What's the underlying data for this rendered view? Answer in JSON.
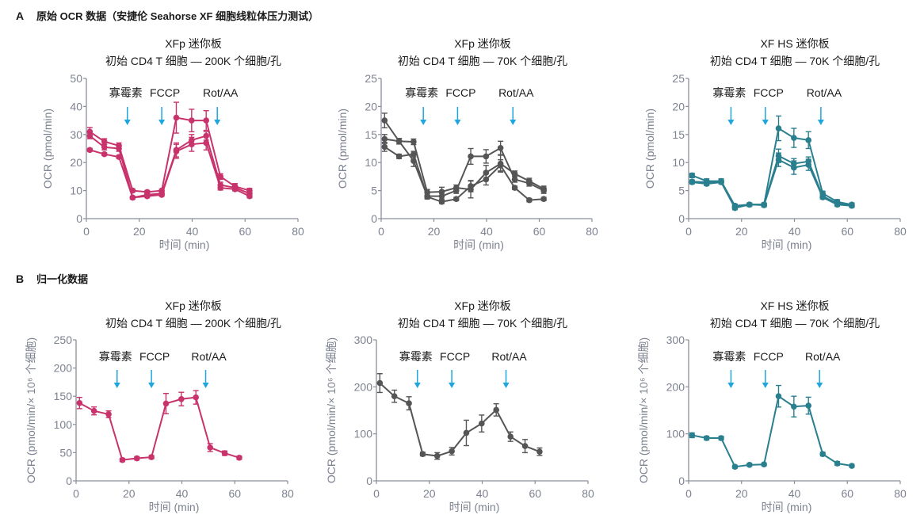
{
  "sections": [
    {
      "letter": "A",
      "title": "原始 OCR 数据（安捷伦 Seahorse XF 细胞线粒体压力测试）"
    },
    {
      "letter": "B",
      "title": "归一化数据"
    }
  ],
  "colors": {
    "pink": "#c8336c",
    "gray": "#555555",
    "teal": "#2a7f8f",
    "arrow": "#1ea6e0",
    "axis": "#8a8f99"
  },
  "chart_data": [
    {
      "type": "line",
      "section": "A",
      "title": [
        "XFp 迷你板",
        "初始 CD4 T 细胞 — 200K 个细胞/孔"
      ],
      "xlabel": "时间 (min)",
      "ylabel": "OCR (pmol/min)",
      "xlim": [
        0,
        80
      ],
      "xticks": [
        0,
        20,
        40,
        60,
        80
      ],
      "ylim": [
        0,
        50
      ],
      "yticks": [
        0,
        10,
        20,
        30,
        40,
        50
      ],
      "color": "#c8336c",
      "annotations": [
        {
          "label": "寡霉素",
          "x": 15.5
        },
        {
          "label": "FCCP",
          "x": 28.5
        },
        {
          "label": "Rot/AA",
          "x": 49.5
        }
      ],
      "x": [
        1.3,
        6.8,
        12.3,
        17.5,
        23,
        28.5,
        34,
        39.8,
        45.3,
        50.7,
        56.2,
        61.7
      ],
      "series": [
        {
          "values": [
            31,
            27.5,
            26,
            10,
            9.5,
            10,
            36,
            35,
            35,
            15,
            11.5,
            10
          ],
          "errors": [
            1.5,
            1,
            1,
            0.5,
            0.5,
            0.5,
            5.5,
            4,
            3.5,
            1,
            1,
            0.8
          ]
        },
        {
          "values": [
            29.5,
            25.5,
            25,
            7.5,
            8.5,
            9,
            24.5,
            28,
            29.5,
            12,
            11,
            9
          ],
          "errors": [
            1,
            1,
            1,
            0.5,
            0.5,
            0.5,
            2.5,
            2,
            1.5,
            1,
            0.8,
            0.8
          ]
        },
        {
          "values": [
            24.5,
            23,
            22,
            7.5,
            8,
            8.5,
            24,
            26.5,
            27,
            11,
            10.5,
            8
          ],
          "errors": [
            0.5,
            0.5,
            0.5,
            0.5,
            0.5,
            0.5,
            2.5,
            2.5,
            2.5,
            0.8,
            0.6,
            0.6
          ]
        }
      ]
    },
    {
      "type": "line",
      "section": "A",
      "title": [
        "XFp 迷你板",
        "初始 CD4 T 细胞 — 70K 个细胞/孔"
      ],
      "xlabel": "时间 (min)",
      "ylabel": "OCR (pmol/min)",
      "xlim": [
        0,
        80
      ],
      "xticks": [
        0,
        20,
        40,
        60,
        80
      ],
      "ylim": [
        0,
        25
      ],
      "yticks": [
        0,
        5,
        10,
        15,
        20,
        25
      ],
      "color": "#555555",
      "annotations": [
        {
          "label": "寡霉素",
          "x": 16
        },
        {
          "label": "FCCP",
          "x": 29
        },
        {
          "label": "Rot/AA",
          "x": 50
        }
      ],
      "x": [
        1.3,
        6.8,
        12.3,
        17.5,
        23,
        28.5,
        34,
        39.8,
        45.3,
        50.7,
        56.2,
        61.7
      ],
      "series": [
        {
          "values": [
            17.5,
            13.8,
            10.3,
            4,
            4,
            5,
            11.1,
            11.1,
            12.6,
            7,
            6.3,
            5
          ],
          "errors": [
            1.3,
            0.5,
            1,
            0.5,
            0.5,
            0.5,
            1.4,
            1.2,
            1.2,
            0.5,
            0.5,
            0.5
          ]
        },
        {
          "values": [
            14.2,
            13.8,
            13.7,
            4.7,
            4.8,
            5.5,
            5.2,
            8.2,
            9.8,
            8,
            6.7,
            5.3
          ],
          "errors": [
            0.8,
            0.5,
            0.5,
            0.5,
            0.8,
            0.5,
            1.5,
            1.3,
            1.5,
            0.5,
            0.5,
            0.5
          ]
        },
        {
          "values": [
            12.8,
            11.1,
            11.5,
            3.9,
            3,
            3.5,
            5.8,
            7,
            9.5,
            5.5,
            3.3,
            3.5
          ],
          "errors": [
            0.8,
            0.4,
            0.5,
            0.3,
            0.3,
            0.3,
            1,
            1,
            1,
            0.3,
            0.3,
            0.3
          ]
        }
      ]
    },
    {
      "type": "line",
      "section": "A",
      "title": [
        "XF HS 迷你板",
        "初始 CD4 T 细胞 — 70K 个细胞/孔"
      ],
      "xlabel": "时间 (min)",
      "ylabel": "OCR (pmol/min)",
      "xlim": [
        0,
        80
      ],
      "xticks": [
        0,
        20,
        40,
        60,
        80
      ],
      "ylim": [
        0,
        25
      ],
      "yticks": [
        0,
        5,
        10,
        15,
        20,
        25
      ],
      "color": "#2a7f8f",
      "annotations": [
        {
          "label": "寡霉素",
          "x": 16
        },
        {
          "label": "FCCP",
          "x": 29
        },
        {
          "label": "Rot/AA",
          "x": 50
        }
      ],
      "x": [
        1.3,
        6.8,
        12.3,
        17.5,
        23,
        28.5,
        34,
        39.8,
        45.3,
        50.7,
        56.2,
        61.7
      ],
      "series": [
        {
          "values": [
            7.7,
            6.7,
            6.7,
            2.3,
            2.5,
            2.5,
            16.1,
            14.4,
            14,
            4.5,
            3,
            2.5
          ],
          "errors": [
            0.4,
            0.4,
            0.4,
            0.3,
            0.3,
            0.3,
            2.2,
            1.7,
            1.5,
            0.4,
            0.4,
            0.3
          ]
        },
        {
          "values": [
            6.6,
            6.5,
            6.6,
            2.1,
            2.5,
            2.5,
            11.2,
            9.8,
            10.2,
            4,
            2.7,
            2.3
          ],
          "errors": [
            0.3,
            0.3,
            0.3,
            0.3,
            0.3,
            0.3,
            1.2,
            0.9,
            0.8,
            0.3,
            0.3,
            0.3
          ]
        },
        {
          "values": [
            6.5,
            6.2,
            6.5,
            1.9,
            2.5,
            2.4,
            10.5,
            9.1,
            9.6,
            3.8,
            2.5,
            2.3
          ],
          "errors": [
            0.3,
            0.3,
            0.3,
            0.3,
            0.3,
            0.3,
            1.2,
            1.2,
            1,
            0.3,
            0.3,
            0.3
          ]
        }
      ]
    },
    {
      "type": "line",
      "section": "B",
      "title": [
        "XFp 迷你板",
        "初始 CD4 T 细胞 — 200K 个细胞/孔"
      ],
      "xlabel": "时间 (min)",
      "ylabel": "OCR (pmol/min/× 10⁶ 个细胞)",
      "xlim": [
        0,
        80
      ],
      "xticks": [
        0,
        20,
        40,
        60,
        80
      ],
      "ylim": [
        0,
        250
      ],
      "yticks": [
        0,
        50,
        100,
        150,
        200,
        250
      ],
      "color": "#c8336c",
      "annotations": [
        {
          "label": "寡霉素",
          "x": 15.5
        },
        {
          "label": "FCCP",
          "x": 28.5
        },
        {
          "label": "Rot/AA",
          "x": 49
        }
      ],
      "x": [
        1.3,
        6.8,
        12.3,
        17.5,
        23,
        28.5,
        34,
        39.8,
        45.3,
        50.7,
        56.2,
        61.7
      ],
      "series": [
        {
          "values": [
            138,
            124,
            118,
            37,
            40,
            42,
            137,
            145,
            148,
            59,
            49,
            41
          ],
          "errors": [
            10,
            7,
            6,
            3,
            3,
            3,
            18,
            12,
            12,
            7,
            4,
            3
          ]
        }
      ]
    },
    {
      "type": "line",
      "section": "B",
      "title": [
        "XFp 迷你板",
        "初始 CD4 T 细胞 — 70K 个细胞/孔"
      ],
      "xlabel": "时间 (min)",
      "ylabel": "OCR (pmol/min/× 10⁶ 个细胞)",
      "xlim": [
        0,
        80
      ],
      "xticks": [
        0,
        20,
        40,
        60,
        80
      ],
      "ylim": [
        0,
        300
      ],
      "yticks": [
        0,
        100,
        200,
        300
      ],
      "color": "#555555",
      "annotations": [
        {
          "label": "寡霉素",
          "x": 15.5
        },
        {
          "label": "FCCP",
          "x": 28.5
        },
        {
          "label": "Rot/AA",
          "x": 49
        }
      ],
      "x": [
        1.3,
        6.8,
        12.3,
        17.5,
        23,
        28.5,
        34,
        39.8,
        45.3,
        50.7,
        56.2,
        61.7
      ],
      "series": [
        {
          "values": [
            208,
            180,
            165,
            57,
            53,
            63,
            102,
            122,
            151,
            94,
            74,
            62
          ],
          "errors": [
            20,
            13,
            14,
            4,
            7,
            8,
            27,
            18,
            13,
            10,
            14,
            8
          ]
        }
      ]
    },
    {
      "type": "line",
      "section": "B",
      "title": [
        "XF HS 迷你板",
        "初始 CD4 T 细胞 — 70K 个细胞/孔"
      ],
      "xlabel": "时间 (min)",
      "ylabel": "OCR (pmol/min/× 10⁶ 个细胞)",
      "xlim": [
        0,
        80
      ],
      "xticks": [
        0,
        20,
        40,
        60,
        80
      ],
      "ylim": [
        0,
        300
      ],
      "yticks": [
        0,
        100,
        200,
        300
      ],
      "color": "#2a7f8f",
      "annotations": [
        {
          "label": "寡霉素",
          "x": 16
        },
        {
          "label": "FCCP",
          "x": 29
        },
        {
          "label": "Rot/AA",
          "x": 49.5
        }
      ],
      "x": [
        1.3,
        6.8,
        12.3,
        17.5,
        23,
        28.5,
        34,
        39.8,
        45.3,
        50.7,
        56.2,
        61.7
      ],
      "series": [
        {
          "values": [
            97,
            91,
            91,
            30,
            34,
            35,
            180,
            158,
            160,
            57,
            37,
            32
          ],
          "errors": [
            5,
            4,
            4,
            3,
            3,
            3,
            23,
            22,
            18,
            4,
            4,
            3
          ]
        }
      ]
    }
  ]
}
